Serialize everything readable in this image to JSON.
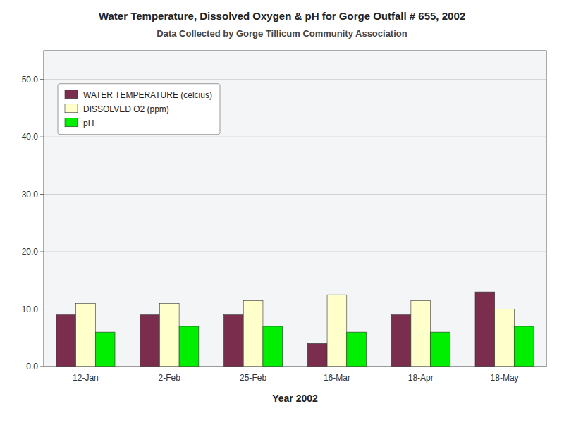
{
  "chart_data": {
    "type": "bar",
    "title": "Water Temperature, Dissolved Oxygen & pH for Gorge Outfall # 655, 2002",
    "subtitle": "Data Collected by Gorge Tillicum Community Association",
    "x_label": "Year 2002",
    "categories": [
      "12-Jan",
      "2-Feb",
      "25-Feb",
      "16-Mar",
      "18-Apr",
      "18-May"
    ],
    "series": [
      {
        "name": "WATER TEMPERATURE (celcius)",
        "color": "#7B2D4E",
        "values": [
          9.0,
          9.0,
          9.0,
          4.0,
          9.0,
          13.0
        ]
      },
      {
        "name": "DISSOLVED O2 (ppm)",
        "color": "#FFFFCC",
        "values": [
          11.0,
          11.0,
          11.5,
          12.5,
          11.5,
          10.0
        ]
      },
      {
        "name": "pH",
        "color": "#00EE00",
        "values": [
          6.0,
          7.0,
          7.0,
          6.0,
          6.0,
          7.0
        ]
      }
    ],
    "ylim": [
      0.0,
      55.0
    ],
    "yticks": [
      {
        "value": 0.0,
        "label": "0.0"
      },
      {
        "value": 10.0,
        "label": "10.0"
      },
      {
        "value": 20.0,
        "label": "20.0"
      },
      {
        "value": 30.0,
        "label": "30.0"
      },
      {
        "value": 40.0,
        "label": "40.0"
      },
      {
        "value": 50.0,
        "label": "50.0"
      }
    ],
    "grid": true,
    "legend": "upper left"
  }
}
